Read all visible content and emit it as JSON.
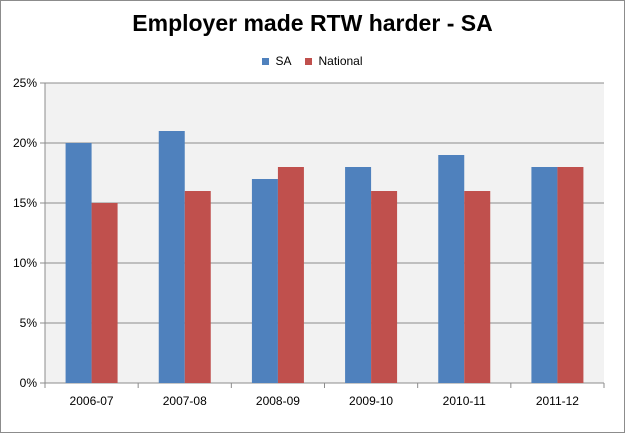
{
  "chart_data": {
    "type": "bar",
    "title": "Employer made RTW harder - SA",
    "categories": [
      "2006-07",
      "2007-08",
      "2008-09",
      "2009-10",
      "2010-11",
      "2011-12"
    ],
    "series": [
      {
        "name": "SA",
        "values": [
          20,
          21,
          17,
          18,
          19,
          18
        ],
        "color": "#4f81bd"
      },
      {
        "name": "National",
        "values": [
          15,
          16,
          18,
          16,
          16,
          18
        ],
        "color": "#c0504d"
      }
    ],
    "ylim": [
      0,
      25
    ],
    "yticks": [
      0,
      5,
      10,
      15,
      20,
      25
    ],
    "ytick_labels": [
      "0%",
      "5%",
      "10%",
      "15%",
      "20%",
      "25%"
    ],
    "grid": true,
    "legend_position": "top",
    "plot_background": "#f2f2f2",
    "gridline_color": "#8c8c8c"
  }
}
